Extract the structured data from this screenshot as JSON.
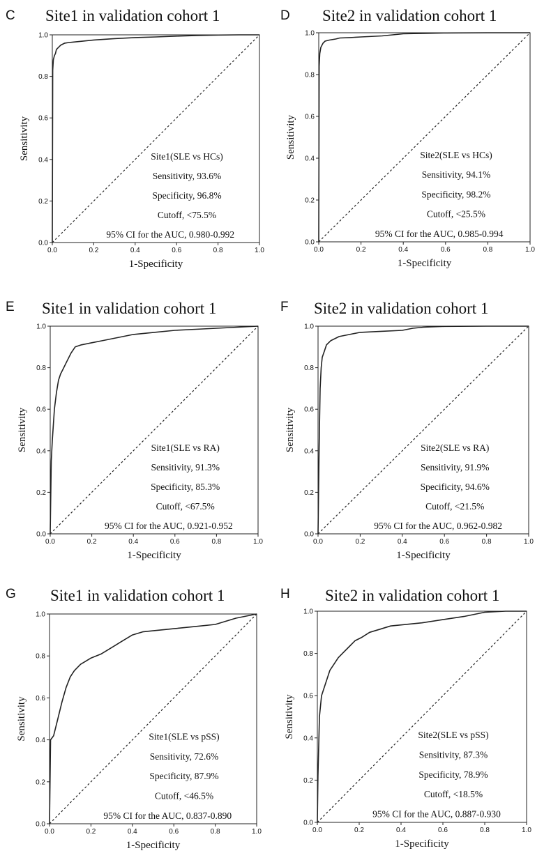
{
  "chart_data": [
    {
      "letter": "C",
      "type": "line",
      "title": "Site1 in validation cohort 1",
      "xlabel": "1-Specificity",
      "ylabel": "Sensitivity",
      "xlim": [
        0,
        1
      ],
      "ylim": [
        0,
        1
      ],
      "xticks": [
        "0.0",
        "0.2",
        "0.4",
        "0.6",
        "0.8",
        "1.0"
      ],
      "yticks": [
        "0.0",
        "0.2",
        "0.4",
        "0.6",
        "0.8",
        "1.0"
      ],
      "annotation": [
        "Site1(SLE vs HCs)",
        "Sensitivity, 93.6%",
        "Specificity, 96.8%",
        "Cutoff, <75.5%",
        "95% CI for the AUC, 0.980-0.992"
      ],
      "series": [
        {
          "x": [
            0,
            0.002,
            0.005,
            0.01,
            0.015,
            0.02,
            0.03,
            0.04,
            0.06,
            0.08,
            0.1,
            0.15,
            0.2,
            0.3,
            0.4,
            0.5,
            0.6,
            0.7,
            0.8,
            0.9,
            1.0
          ],
          "y": [
            0,
            0.83,
            0.88,
            0.9,
            0.91,
            0.93,
            0.94,
            0.95,
            0.96,
            0.963,
            0.965,
            0.97,
            0.975,
            0.982,
            0.987,
            0.99,
            0.994,
            0.997,
            0.999,
            1.0,
            1.0
          ]
        }
      ]
    },
    {
      "letter": "D",
      "type": "line",
      "title": "Site2 in validation cohort 1",
      "xlabel": "1-Specificity",
      "ylabel": "Sensitivity",
      "xlim": [
        0,
        1
      ],
      "ylim": [
        0,
        1
      ],
      "xticks": [
        "0.0",
        "0.2",
        "0.4",
        "0.6",
        "0.8",
        "1.0"
      ],
      "yticks": [
        "0.0",
        "0.2",
        "0.4",
        "0.6",
        "0.8",
        "1.0"
      ],
      "annotation": [
        "Site2(SLE vs HCs)",
        "Sensitivity, 94.1%",
        "Specificity, 98.2%",
        "Cutoff, <25.5%",
        "95% CI for the AUC, 0.985-0.994"
      ],
      "series": [
        {
          "x": [
            0,
            0.002,
            0.005,
            0.01,
            0.02,
            0.03,
            0.05,
            0.08,
            0.1,
            0.15,
            0.2,
            0.3,
            0.35,
            0.4,
            0.5,
            0.6,
            0.8,
            1.0
          ],
          "y": [
            0,
            0.84,
            0.9,
            0.93,
            0.95,
            0.96,
            0.965,
            0.97,
            0.975,
            0.977,
            0.98,
            0.985,
            0.99,
            0.995,
            0.997,
            0.999,
            1.0,
            1.0
          ]
        }
      ]
    },
    {
      "letter": "E",
      "type": "line",
      "title": "Site1 in validation cohort 1",
      "xlabel": "1-Specificity",
      "ylabel": "Sensitivity",
      "xlim": [
        0,
        1
      ],
      "ylim": [
        0,
        1
      ],
      "xticks": [
        "0.0",
        "0.2",
        "0.4",
        "0.6",
        "0.8",
        "1.0"
      ],
      "yticks": [
        "0.0",
        "0.2",
        "0.4",
        "0.6",
        "0.8",
        "1.0"
      ],
      "annotation": [
        "Site1(SLE vs RA)",
        "Sensitivity, 91.3%",
        "Specificity, 85.3%",
        "Cutoff, <67.5%",
        "95% CI for the AUC, 0.921-0.952"
      ],
      "series": [
        {
          "x": [
            0,
            0.005,
            0.01,
            0.02,
            0.03,
            0.04,
            0.05,
            0.06,
            0.08,
            0.1,
            0.12,
            0.15,
            0.2,
            0.25,
            0.3,
            0.35,
            0.4,
            0.5,
            0.6,
            0.7,
            0.8,
            0.9,
            1.0
          ],
          "y": [
            0,
            0.35,
            0.45,
            0.6,
            0.68,
            0.74,
            0.77,
            0.79,
            0.83,
            0.87,
            0.9,
            0.91,
            0.92,
            0.93,
            0.94,
            0.95,
            0.96,
            0.97,
            0.98,
            0.985,
            0.99,
            0.995,
            1.0
          ]
        }
      ]
    },
    {
      "letter": "F",
      "type": "line",
      "title": "Site2 in validation cohort 1",
      "xlabel": "1-Specificity",
      "ylabel": "Sensitivity",
      "xlim": [
        0,
        1
      ],
      "ylim": [
        0,
        1
      ],
      "xticks": [
        "0.0",
        "0.2",
        "0.4",
        "0.6",
        "0.8",
        "1.0"
      ],
      "yticks": [
        "0.0",
        "0.2",
        "0.4",
        "0.6",
        "0.8",
        "1.0"
      ],
      "annotation": [
        "Site2(SLE vs RA)",
        "Sensitivity, 91.9%",
        "Specificity, 94.6%",
        "Cutoff, <21.5%",
        "95% CI for the AUC, 0.962-0.982"
      ],
      "series": [
        {
          "x": [
            0,
            0.005,
            0.01,
            0.015,
            0.02,
            0.03,
            0.04,
            0.06,
            0.08,
            0.1,
            0.15,
            0.2,
            0.3,
            0.4,
            0.45,
            0.5,
            0.6,
            0.8,
            1.0
          ],
          "y": [
            0,
            0.4,
            0.7,
            0.8,
            0.85,
            0.88,
            0.91,
            0.93,
            0.94,
            0.95,
            0.96,
            0.97,
            0.975,
            0.98,
            0.99,
            0.995,
            0.999,
            1.0,
            1.0
          ]
        }
      ]
    },
    {
      "letter": "G",
      "type": "line",
      "title": "Site1 in validation cohort 1",
      "xlabel": "1-Specificity",
      "ylabel": "Sensitivity",
      "xlim": [
        0,
        1
      ],
      "ylim": [
        0,
        1
      ],
      "xticks": [
        "0.0",
        "0.2",
        "0.4",
        "0.6",
        "0.8",
        "1.0"
      ],
      "yticks": [
        "0.0",
        "0.2",
        "0.4",
        "0.6",
        "0.8",
        "1.0"
      ],
      "annotation": [
        "Site1(SLE vs pSS)",
        "Sensitivity, 72.6%",
        "Specificity, 87.9%",
        "Cutoff, <46.5%",
        "95% CI for the AUC, 0.837-0.890"
      ],
      "series": [
        {
          "x": [
            0,
            0.005,
            0.02,
            0.04,
            0.06,
            0.08,
            0.1,
            0.12,
            0.15,
            0.2,
            0.25,
            0.3,
            0.35,
            0.4,
            0.45,
            0.5,
            0.6,
            0.7,
            0.8,
            0.9,
            1.0
          ],
          "y": [
            0,
            0.4,
            0.42,
            0.5,
            0.58,
            0.65,
            0.7,
            0.73,
            0.76,
            0.79,
            0.81,
            0.84,
            0.87,
            0.9,
            0.915,
            0.92,
            0.93,
            0.94,
            0.95,
            0.98,
            1.0
          ]
        }
      ]
    },
    {
      "letter": "H",
      "type": "line",
      "title": "Site2 in validation cohort 1",
      "xlabel": "1-Specificity",
      "ylabel": "Sensitivity",
      "xlim": [
        0,
        1
      ],
      "ylim": [
        0,
        1
      ],
      "xticks": [
        "0.0",
        "0.2",
        "0.4",
        "0.6",
        "0.8",
        "1.0"
      ],
      "yticks": [
        "0.0",
        "0.2",
        "0.4",
        "0.6",
        "0.8",
        "1.0"
      ],
      "annotation": [
        "Site2(SLE vs pSS)",
        "Sensitivity, 87.3%",
        "Specificity, 78.9%",
        "Cutoff, <18.5%",
        "95% CI for the AUC, 0.887-0.930"
      ],
      "series": [
        {
          "x": [
            0,
            0.003,
            0.01,
            0.02,
            0.04,
            0.06,
            0.08,
            0.1,
            0.12,
            0.15,
            0.18,
            0.21,
            0.25,
            0.3,
            0.35,
            0.4,
            0.5,
            0.6,
            0.7,
            0.8,
            0.9,
            1.0
          ],
          "y": [
            0,
            0.22,
            0.5,
            0.6,
            0.66,
            0.72,
            0.75,
            0.78,
            0.8,
            0.83,
            0.86,
            0.875,
            0.9,
            0.915,
            0.93,
            0.935,
            0.945,
            0.96,
            0.975,
            0.995,
            1.0,
            1.0
          ]
        }
      ]
    }
  ]
}
